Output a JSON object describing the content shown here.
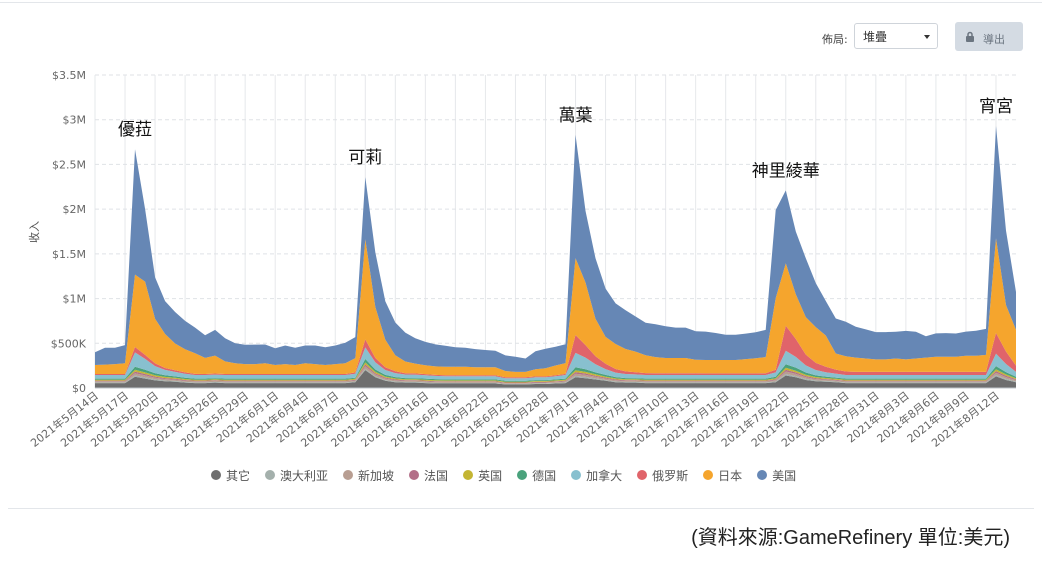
{
  "controls": {
    "layout_label": "佈局:",
    "layout_value": "堆疊",
    "export_label": "導出"
  },
  "source_note": "(資料來源:GameRefinery 單位:美元)",
  "chart_data": {
    "type": "area",
    "stacked": true,
    "ylabel": "收入",
    "ylim": [
      0,
      3500000
    ],
    "yticks": [
      0,
      500000,
      1000000,
      1500000,
      2000000,
      2500000,
      3000000,
      3500000
    ],
    "ytick_labels": [
      "$0",
      "$500K",
      "$1M",
      "$1.5M",
      "$2M",
      "$2.5M",
      "$3M",
      "$3.5M"
    ],
    "xtick_labels": [
      "2021年5月14日",
      "2021年5月17日",
      "2021年5月20日",
      "2021年5月23日",
      "2021年5月26日",
      "2021年5月29日",
      "2021年6月1日",
      "2021年6月4日",
      "2021年6月7日",
      "2021年6月10日",
      "2021年6月13日",
      "2021年6月16日",
      "2021年6月19日",
      "2021年6月22日",
      "2021年6月25日",
      "2021年6月28日",
      "2021年7月1日",
      "2021年7月4日",
      "2021年7月7日",
      "2021年7月10日",
      "2021年7月13日",
      "2021年7月16日",
      "2021年7月19日",
      "2021年7月22日",
      "2021年7月25日",
      "2021年7月28日",
      "2021年7月31日",
      "2021年8月3日",
      "2021年8月6日",
      "2021年8月9日",
      "2021年8月12日"
    ],
    "grid": true,
    "legend_position": "bottom",
    "annotations": [
      {
        "text": "優菈",
        "x_index": 4
      },
      {
        "text": "可莉",
        "x_index": 27
      },
      {
        "text": "萬葉",
        "x_index": 48
      },
      {
        "text": "神里綾華",
        "x_index": 69
      },
      {
        "text": "宵宮",
        "x_index": 90
      }
    ],
    "series": [
      {
        "name": "其它",
        "color": "#6e6e6e",
        "values": [
          55000,
          55000,
          55000,
          55000,
          125000,
          105000,
          85000,
          75000,
          70000,
          60000,
          55000,
          55000,
          60000,
          55000,
          55000,
          55000,
          55000,
          55000,
          55000,
          55000,
          55000,
          55000,
          55000,
          55000,
          55000,
          55000,
          65000,
          200000,
          120000,
          80000,
          65000,
          60000,
          60000,
          55000,
          50000,
          50000,
          50000,
          50000,
          50000,
          50000,
          50000,
          40000,
          40000,
          40000,
          45000,
          45000,
          50000,
          55000,
          120000,
          110000,
          95000,
          80000,
          65000,
          60000,
          60000,
          55000,
          55000,
          55000,
          55000,
          55000,
          55000,
          55000,
          55000,
          55000,
          55000,
          55000,
          55000,
          55000,
          65000,
          140000,
          120000,
          90000,
          75000,
          70000,
          65000,
          55000,
          55000,
          55000,
          55000,
          55000,
          55000,
          55000,
          55000,
          55000,
          55000,
          55000,
          55000,
          55000,
          55000,
          55000,
          130000,
          90000,
          65000
        ]
      },
      {
        "name": "澳大利亚",
        "color": "#a4b0ac",
        "values": [
          8000,
          8000,
          8000,
          8000,
          15000,
          14000,
          12000,
          10000,
          9000,
          8000,
          8000,
          8000,
          8000,
          8000,
          8000,
          8000,
          8000,
          8000,
          8000,
          8000,
          8000,
          8000,
          8000,
          8000,
          8000,
          8000,
          8000,
          16000,
          12000,
          10000,
          9000,
          8000,
          8000,
          8000,
          8000,
          7000,
          7000,
          7000,
          7000,
          7000,
          7000,
          6000,
          6000,
          6000,
          7000,
          7000,
          7000,
          8000,
          15000,
          14000,
          12000,
          10000,
          9000,
          8000,
          8000,
          8000,
          8000,
          8000,
          8000,
          8000,
          8000,
          8000,
          8000,
          8000,
          8000,
          8000,
          8000,
          8000,
          9000,
          16000,
          14000,
          12000,
          10000,
          9000,
          8000,
          8000,
          8000,
          8000,
          8000,
          8000,
          8000,
          8000,
          8000,
          8000,
          8000,
          8000,
          8000,
          8000,
          8000,
          8000,
          15000,
          12000,
          9000
        ]
      },
      {
        "name": "新加坡",
        "color": "#b89e92",
        "values": [
          12000,
          12000,
          12000,
          12000,
          25000,
          22000,
          18000,
          15000,
          14000,
          13000,
          12000,
          12000,
          12000,
          12000,
          12000,
          12000,
          12000,
          12000,
          12000,
          12000,
          12000,
          12000,
          12000,
          12000,
          12000,
          12000,
          12000,
          28000,
          20000,
          15000,
          13000,
          12000,
          12000,
          12000,
          11000,
          11000,
          11000,
          11000,
          11000,
          11000,
          11000,
          9000,
          9000,
          9000,
          10000,
          10000,
          11000,
          12000,
          25000,
          22000,
          18000,
          15000,
          13000,
          12000,
          12000,
          12000,
          12000,
          12000,
          12000,
          12000,
          12000,
          12000,
          12000,
          12000,
          12000,
          12000,
          12000,
          12000,
          14000,
          28000,
          24000,
          18000,
          15000,
          13000,
          12000,
          12000,
          12000,
          12000,
          12000,
          12000,
          12000,
          12000,
          12000,
          12000,
          12000,
          12000,
          12000,
          12000,
          12000,
          12000,
          26000,
          20000,
          14000
        ]
      },
      {
        "name": "法国",
        "color": "#b36f88",
        "values": [
          8000,
          8000,
          8000,
          8000,
          18000,
          16000,
          13000,
          11000,
          10000,
          9000,
          8000,
          8000,
          8000,
          8000,
          8000,
          8000,
          8000,
          8000,
          8000,
          8000,
          8000,
          8000,
          8000,
          8000,
          8000,
          8000,
          8000,
          20000,
          14000,
          11000,
          9000,
          8000,
          8000,
          8000,
          8000,
          8000,
          8000,
          8000,
          8000,
          8000,
          8000,
          7000,
          7000,
          7000,
          7000,
          7000,
          8000,
          8000,
          18000,
          16000,
          13000,
          11000,
          9000,
          8000,
          8000,
          8000,
          8000,
          8000,
          8000,
          8000,
          8000,
          8000,
          8000,
          8000,
          8000,
          8000,
          8000,
          8000,
          10000,
          20000,
          17000,
          13000,
          11000,
          9000,
          8000,
          8000,
          8000,
          8000,
          8000,
          8000,
          8000,
          8000,
          8000,
          8000,
          8000,
          8000,
          8000,
          8000,
          8000,
          8000,
          18000,
          14000,
          10000
        ]
      },
      {
        "name": "英国",
        "color": "#c4b533",
        "values": [
          10000,
          10000,
          10000,
          10000,
          20000,
          18000,
          15000,
          13000,
          12000,
          11000,
          10000,
          10000,
          10000,
          10000,
          10000,
          10000,
          10000,
          10000,
          10000,
          10000,
          10000,
          10000,
          10000,
          10000,
          10000,
          10000,
          10000,
          22000,
          16000,
          12000,
          11000,
          10000,
          10000,
          10000,
          10000,
          9000,
          9000,
          9000,
          9000,
          9000,
          9000,
          8000,
          8000,
          8000,
          9000,
          9000,
          9000,
          10000,
          20000,
          18000,
          15000,
          12000,
          11000,
          10000,
          10000,
          10000,
          10000,
          10000,
          10000,
          10000,
          10000,
          10000,
          10000,
          10000,
          10000,
          10000,
          10000,
          10000,
          12000,
          22000,
          19000,
          15000,
          12000,
          11000,
          10000,
          10000,
          10000,
          10000,
          10000,
          10000,
          10000,
          10000,
          10000,
          10000,
          10000,
          10000,
          10000,
          10000,
          10000,
          10000,
          20000,
          16000,
          11000
        ]
      },
      {
        "name": "德国",
        "color": "#4aa27c",
        "values": [
          12000,
          12000,
          12000,
          12000,
          35000,
          30000,
          22000,
          18000,
          15000,
          13000,
          12000,
          12000,
          12000,
          12000,
          12000,
          12000,
          12000,
          12000,
          12000,
          12000,
          12000,
          12000,
          12000,
          12000,
          12000,
          12000,
          12000,
          38000,
          25000,
          18000,
          15000,
          13000,
          12000,
          12000,
          12000,
          11000,
          11000,
          11000,
          11000,
          11000,
          11000,
          10000,
          10000,
          10000,
          10000,
          10000,
          11000,
          12000,
          35000,
          30000,
          22000,
          18000,
          15000,
          13000,
          12000,
          12000,
          12000,
          12000,
          12000,
          12000,
          12000,
          12000,
          12000,
          12000,
          12000,
          12000,
          12000,
          12000,
          15000,
          40000,
          34000,
          25000,
          18000,
          15000,
          13000,
          12000,
          12000,
          12000,
          12000,
          12000,
          12000,
          12000,
          12000,
          12000,
          12000,
          12000,
          12000,
          12000,
          12000,
          12000,
          36000,
          26000,
          16000
        ]
      },
      {
        "name": "加拿大",
        "color": "#88c0cf",
        "values": [
          40000,
          40000,
          40000,
          40000,
          160000,
          120000,
          80000,
          60000,
          50000,
          45000,
          40000,
          40000,
          40000,
          40000,
          40000,
          40000,
          40000,
          40000,
          40000,
          40000,
          40000,
          40000,
          40000,
          40000,
          40000,
          40000,
          45000,
          130000,
          80000,
          55000,
          45000,
          40000,
          40000,
          38000,
          36000,
          35000,
          35000,
          35000,
          35000,
          35000,
          35000,
          30000,
          30000,
          30000,
          32000,
          32000,
          35000,
          40000,
          160000,
          130000,
          90000,
          65000,
          50000,
          45000,
          42000,
          40000,
          40000,
          40000,
          40000,
          40000,
          40000,
          40000,
          40000,
          40000,
          40000,
          40000,
          40000,
          40000,
          50000,
          150000,
          120000,
          80000,
          60000,
          50000,
          45000,
          40000,
          40000,
          40000,
          40000,
          40000,
          40000,
          40000,
          40000,
          40000,
          40000,
          40000,
          40000,
          40000,
          40000,
          40000,
          140000,
          90000,
          55000
        ]
      },
      {
        "name": "俄罗斯",
        "color": "#e0646a",
        "values": [
          12000,
          12000,
          12000,
          12000,
          60000,
          45000,
          30000,
          22000,
          18000,
          15000,
          13000,
          12000,
          12000,
          12000,
          12000,
          12000,
          12000,
          12000,
          12000,
          12000,
          12000,
          12000,
          12000,
          12000,
          12000,
          12000,
          14000,
          90000,
          50000,
          30000,
          20000,
          15000,
          13000,
          12000,
          12000,
          11000,
          11000,
          11000,
          11000,
          11000,
          11000,
          10000,
          10000,
          10000,
          10000,
          10000,
          11000,
          13000,
          200000,
          140000,
          90000,
          60000,
          40000,
          30000,
          25000,
          22000,
          20000,
          20000,
          20000,
          20000,
          20000,
          18000,
          18000,
          18000,
          18000,
          18000,
          18000,
          20000,
          30000,
          280000,
          200000,
          120000,
          80000,
          60000,
          45000,
          40000,
          35000,
          35000,
          35000,
          35000,
          35000,
          35000,
          35000,
          35000,
          35000,
          35000,
          35000,
          35000,
          35000,
          35000,
          230000,
          140000,
          70000
        ]
      },
      {
        "name": "日本",
        "color": "#f5a52d",
        "values": [
          100000,
          105000,
          110000,
          120000,
          810000,
          820000,
          500000,
          380000,
          300000,
          260000,
          230000,
          180000,
          200000,
          140000,
          120000,
          110000,
          110000,
          120000,
          100000,
          110000,
          100000,
          120000,
          110000,
          100000,
          110000,
          120000,
          160000,
          1120000,
          570000,
          310000,
          180000,
          130000,
          110000,
          100000,
          95000,
          95000,
          95000,
          95000,
          90000,
          90000,
          90000,
          70000,
          60000,
          60000,
          80000,
          90000,
          110000,
          120000,
          860000,
          700000,
          420000,
          300000,
          280000,
          250000,
          230000,
          200000,
          180000,
          170000,
          170000,
          170000,
          150000,
          150000,
          150000,
          150000,
          150000,
          160000,
          170000,
          180000,
          800000,
          700000,
          500000,
          420000,
          400000,
          350000,
          180000,
          170000,
          160000,
          150000,
          140000,
          140000,
          150000,
          140000,
          150000,
          160000,
          170000,
          170000,
          170000,
          180000,
          180000,
          190000,
          1060000,
          520000,
          400000
        ]
      },
      {
        "name": "美国",
        "color": "#6687b5",
        "values": [
          143000,
          188000,
          183000,
          203000,
          1402000,
          810000,
          462000,
          368000,
          352000,
          316000,
          287000,
          253000,
          288000,
          259000,
          223000,
          216000,
          218000,
          209000,
          188000,
          208000,
          193000,
          198000,
          208000,
          198000,
          208000,
          228000,
          235000,
          694000,
          611000,
          429000,
          365000,
          324000,
          284000,
          260000,
          246000,
          236000,
          218000,
          213000,
          203000,
          193000,
          185000,
          175000,
          170000,
          150000,
          200000,
          220000,
          210000,
          212000,
          1377000,
          800000,
          675000,
          541000,
          454000,
          434000,
          393000,
          363000,
          368000,
          355000,
          340000,
          340000,
          320000,
          318000,
          302000,
          282000,
          282000,
          285000,
          290000,
          305000,
          985000,
          814000,
          702000,
          657000,
          492000,
          386000,
          391000,
          385000,
          345000,
          325000,
          305000,
          305000,
          300000,
          318000,
          299000,
          239000,
          260000,
          264000,
          259000,
          271000,
          281000,
          291000,
          1255000,
          832000,
          424000
        ]
      }
    ]
  }
}
